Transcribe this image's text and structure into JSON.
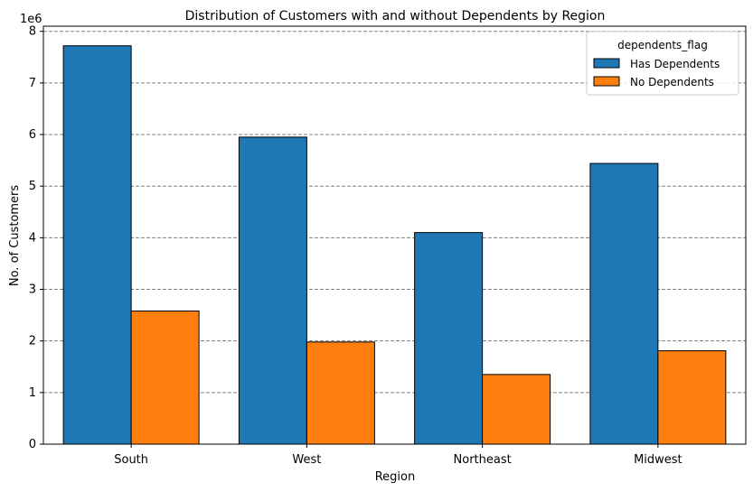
{
  "chart_data": {
    "type": "bar",
    "title": "Distribution of Customers with and without Dependents by Region",
    "xlabel": "Region",
    "ylabel": "No. of Customers",
    "y_scale_label": "1e6",
    "categories": [
      "South",
      "West",
      "Northeast",
      "Midwest"
    ],
    "series": [
      {
        "name": "Has Dependents",
        "color": "#1f77b4",
        "values": [
          7720000,
          5950000,
          4100000,
          5440000
        ]
      },
      {
        "name": "No Dependents",
        "color": "#ff7f0e",
        "values": [
          2580000,
          1980000,
          1350000,
          1810000
        ]
      }
    ],
    "ylim": [
      0,
      8100000
    ],
    "yticks": [
      0,
      1,
      2,
      3,
      4,
      5,
      6,
      7,
      8
    ],
    "grid": "y-dashed",
    "legend": {
      "title": "dependents_flag",
      "position": "top-right"
    }
  }
}
